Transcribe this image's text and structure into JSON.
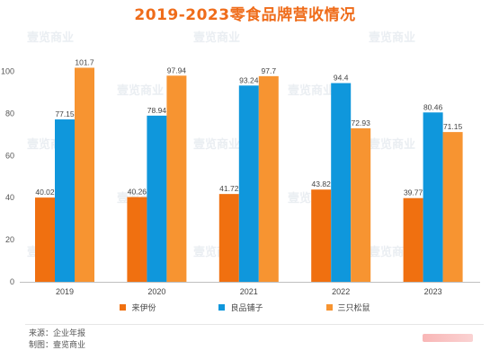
{
  "chart_data": {
    "type": "bar",
    "title": "2019-2023零食品牌营收情况",
    "categories": [
      "2019",
      "2020",
      "2021",
      "2022",
      "2023"
    ],
    "series": [
      {
        "name": "来伊份",
        "color": "#f07010",
        "values": [
          40.02,
          40.26,
          41.72,
          43.82,
          39.77
        ]
      },
      {
        "name": "良品铺子",
        "color": "#0f97dc",
        "values": [
          77.15,
          78.94,
          93.24,
          94.4,
          80.46
        ]
      },
      {
        "name": "三只松鼠",
        "color": "#f79431",
        "values": [
          101.7,
          97.94,
          97.7,
          72.93,
          71.15
        ]
      }
    ],
    "ylim": [
      0,
      110
    ],
    "yticks": [
      0,
      20,
      40,
      60,
      80,
      100
    ],
    "grid": false,
    "legend_position": "bottom"
  },
  "footer": {
    "source": "来源：企业年报",
    "credit": "制图：壹览商业"
  },
  "watermark": "壹览商业"
}
